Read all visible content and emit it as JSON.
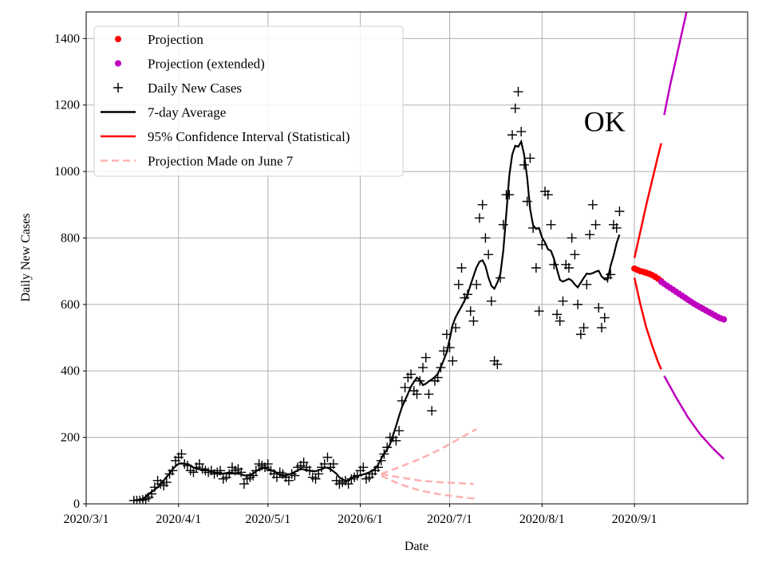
{
  "chart_data": {
    "type": "line",
    "xlabel": "Date",
    "ylabel": "Daily New Cases",
    "annotation": "OK",
    "annotation_pos": {
      "day": 174,
      "value": 1150
    },
    "xlim": [
      0,
      222
    ],
    "ylim": [
      0,
      1480
    ],
    "grid": true,
    "legend_position": "top-left",
    "x_ticks": [
      {
        "day": 0,
        "label": "2020/3/1"
      },
      {
        "day": 31,
        "label": "2020/4/1"
      },
      {
        "day": 61,
        "label": "2020/5/1"
      },
      {
        "day": 92,
        "label": "2020/6/1"
      },
      {
        "day": 122,
        "label": "2020/7/1"
      },
      {
        "day": 153,
        "label": "2020/8/1"
      },
      {
        "day": 184,
        "label": "2020/9/1"
      }
    ],
    "y_ticks": [
      0,
      200,
      400,
      600,
      800,
      1000,
      1200,
      1400
    ],
    "legend": [
      {
        "label": "Projection",
        "kind": "dot",
        "color": "#ff0000"
      },
      {
        "label": "Projection (extended)",
        "kind": "dot",
        "color": "#bf00bf"
      },
      {
        "label": "Daily New Cases",
        "kind": "plus",
        "color": "#000000"
      },
      {
        "label": "7-day Average",
        "kind": "line",
        "color": "#000000"
      },
      {
        "label": "95% Confidence Interval (Statistical)",
        "kind": "line",
        "color": "#ff0000"
      },
      {
        "label": "Projection Made on June 7",
        "kind": "dash",
        "color": "#ffb0b0"
      }
    ],
    "daily_start_day": 16,
    "daily_new_cases": [
      10,
      10,
      10,
      12,
      15,
      20,
      30,
      50,
      70,
      60,
      55,
      65,
      90,
      100,
      130,
      140,
      150,
      120,
      115,
      100,
      95,
      110,
      120,
      105,
      100,
      95,
      100,
      90,
      95,
      100,
      75,
      80,
      90,
      110,
      100,
      105,
      95,
      60,
      75,
      80,
      85,
      100,
      120,
      115,
      110,
      120,
      100,
      90,
      80,
      95,
      90,
      80,
      70,
      90,
      85,
      110,
      115,
      125,
      110,
      100,
      80,
      75,
      90,
      110,
      120,
      140,
      110,
      120,
      70,
      60,
      65,
      70,
      60,
      75,
      80,
      85,
      100,
      110,
      75,
      80,
      90,
      100,
      110,
      130,
      150,
      170,
      200,
      200,
      190,
      220,
      310,
      350,
      380,
      390,
      340,
      330,
      370,
      410,
      440,
      330,
      280,
      370,
      380,
      410,
      460,
      510,
      470,
      430,
      530,
      660,
      710,
      620,
      630,
      580,
      550,
      660,
      860,
      900,
      800,
      750,
      610,
      430,
      420,
      680,
      840,
      930,
      930,
      1110,
      1190,
      1240,
      1120,
      1020,
      910,
      1040,
      830,
      710,
      580,
      780,
      940,
      930,
      840,
      720,
      570,
      550,
      610,
      720,
      710,
      800,
      750,
      600,
      510,
      530,
      660,
      810,
      900,
      840,
      590,
      530,
      560,
      680,
      690,
      840,
      830,
      880
    ],
    "projection": {
      "days": [
        184,
        185,
        186,
        187,
        188,
        189,
        190,
        191,
        192,
        193
      ],
      "values": [
        708,
        704,
        700,
        698,
        695,
        692,
        688,
        683,
        677,
        670
      ],
      "color": "#ff0000"
    },
    "projection_extended": {
      "days": [
        193,
        194,
        195,
        196,
        197,
        198,
        199,
        200,
        201,
        202,
        203,
        204,
        205,
        206,
        207,
        208,
        209,
        210,
        211,
        212,
        213,
        214
      ],
      "values": [
        668,
        662,
        656,
        650,
        644,
        638,
        632,
        626,
        620,
        614,
        608,
        602,
        597,
        592,
        587,
        582,
        577,
        572,
        567,
        562,
        558,
        555
      ],
      "color": "#bf00bf"
    },
    "ci_statistical": {
      "upper": {
        "days": [
          184,
          186,
          188,
          190,
          192,
          193
        ],
        "values": [
          740,
          820,
          900,
          975,
          1050,
          1085
        ]
      },
      "lower": {
        "days": [
          184,
          186,
          188,
          190,
          192,
          193
        ],
        "values": [
          680,
          600,
          530,
          475,
          425,
          405
        ]
      },
      "color": "#ff0000"
    },
    "ci_extended": {
      "upper": {
        "days": [
          194,
          196,
          198,
          200,
          202
        ],
        "values": [
          1170,
          1260,
          1340,
          1420,
          1500
        ]
      },
      "lower": {
        "days": [
          194,
          198,
          202,
          206,
          210,
          214
        ],
        "values": [
          385,
          320,
          260,
          210,
          170,
          135
        ]
      },
      "color": "#bf00bf"
    },
    "june7_projection": {
      "upper": {
        "days": [
          99,
          105,
          112,
          119,
          126,
          131
        ],
        "values": [
          90,
          110,
          135,
          165,
          200,
          225
        ]
      },
      "middle": {
        "days": [
          99,
          105,
          112,
          119,
          126,
          130
        ],
        "values": [
          90,
          80,
          70,
          65,
          62,
          60
        ]
      },
      "lower": {
        "days": [
          99,
          105,
          112,
          119,
          126,
          131
        ],
        "values": [
          85,
          60,
          40,
          28,
          20,
          15
        ]
      },
      "color": "#ffb0b0"
    }
  }
}
